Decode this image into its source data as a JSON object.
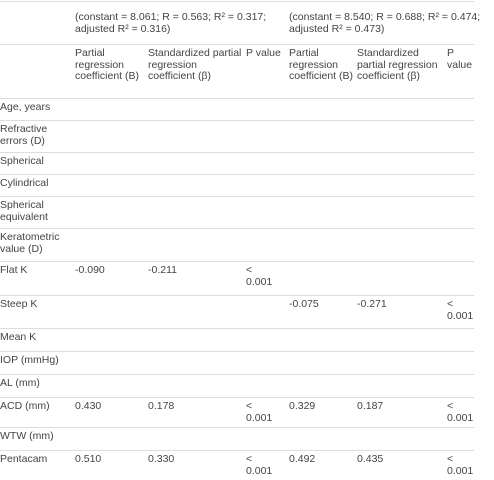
{
  "header": {
    "models": [
      "(constant = 8.061; R = 0.563; R² = 0.317; adjusted R² = 0.316)",
      "(constant = 8.540; R = 0.688; R² = 0.474; adjusted R² = 0.473)"
    ],
    "columns": [
      "Partial regression coefficient (B)",
      "Standardized partial regression coefficient (β)",
      "P value",
      "Partial regression coefficient (B)",
      "Standardized partial regression coefficient (β)",
      "P value"
    ]
  },
  "table": {
    "rows": [
      [
        "Age, years",
        null,
        null,
        null,
        null,
        null,
        null
      ],
      [
        "Refractive errors (D)",
        null,
        null,
        null,
        null,
        null,
        null
      ],
      [
        "Spherical",
        null,
        null,
        null,
        null,
        null,
        null
      ],
      [
        "Cylindrical",
        null,
        null,
        null,
        null,
        null,
        null
      ],
      [
        "Spherical equivalent",
        null,
        null,
        null,
        null,
        null,
        null
      ],
      [
        "Keratometric value (D)",
        null,
        null,
        null,
        null,
        null,
        null
      ],
      [
        "Flat K",
        "-0.090",
        "-0.211",
        "< 0.001",
        null,
        null,
        null
      ],
      [
        "Steep K",
        null,
        null,
        null,
        "-0.075",
        "-0.271",
        "< 0.001"
      ],
      [
        "Mean K",
        null,
        null,
        null,
        null,
        null,
        null
      ],
      [
        "IOP (mmHg)",
        null,
        null,
        null,
        null,
        null,
        null
      ],
      [
        "AL (mm)",
        null,
        null,
        null,
        null,
        null,
        null
      ],
      [
        "ACD (mm)",
        "0.430",
        "0.178",
        "< 0.001",
        "0.329",
        "0.187",
        "< 0.001"
      ],
      [
        "WTW (mm)",
        null,
        null,
        null,
        null,
        null,
        null
      ],
      [
        "Pentacam",
        "0.510",
        "0.330",
        "< 0.001",
        "0.492",
        "0.435",
        "< 0.001"
      ]
    ]
  }
}
